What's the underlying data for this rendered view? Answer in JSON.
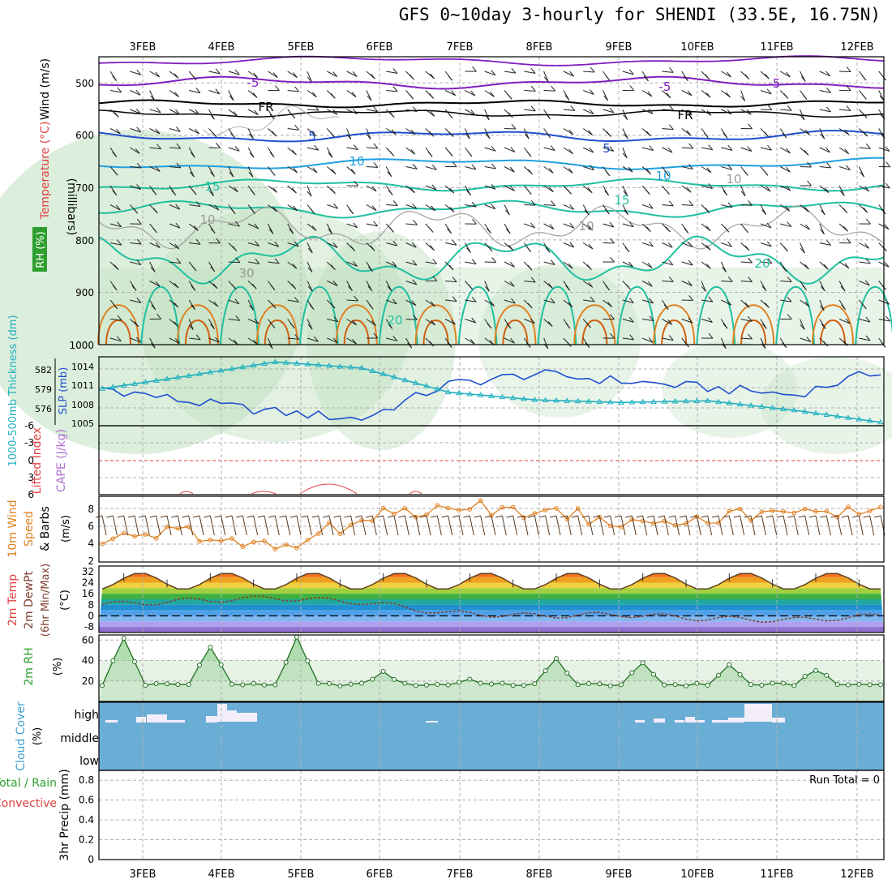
{
  "title": "GFS 0~10day 3-hourly for SHENDI (33.5E, 16.75N)",
  "dates": [
    "3FEB",
    "4FEB",
    "5FEB",
    "6FEB",
    "7FEB",
    "8FEB",
    "9FEB",
    "10FEB",
    "11FEB",
    "12FEB"
  ],
  "colors": {
    "frame": "#000000",
    "grid": "#b0b0b0",
    "purple": "#8020c0",
    "black_iso": "#000000",
    "blue_iso": "#2050d0",
    "lightblue_iso": "#20a0e0",
    "teal_iso": "#20c0a0",
    "cyan": "#20b0c0",
    "orange": "#e08020",
    "green": "#30a030",
    "red": "#e04040",
    "cloud": "#6aaed6",
    "rh_shade": "#bfe0bf"
  },
  "panels": {
    "upper": {
      "label_wind": "Wind (m/s)",
      "label_temp": "Temperature (°C)",
      "label_rh": "RH (%)",
      "label_pressure": "(millibars)",
      "ticks": [
        "500",
        "600",
        "700",
        "800",
        "900",
        "1000"
      ],
      "iso_labels": [
        "-5",
        "-5",
        "-5",
        "FR",
        "FR",
        "5",
        "5",
        "10",
        "10",
        "15",
        "15",
        "20",
        "20",
        "10",
        "10",
        "10",
        "30"
      ]
    },
    "slp": {
      "label_thk": "1000-500mb Thickness (dm)",
      "label_slp": "SLP (mb)",
      "ticks_left": [
        "582",
        "579",
        "576"
      ],
      "ticks_right": [
        "1014",
        "1011",
        "1008",
        "1005"
      ]
    },
    "cape": {
      "label_li": "Lifted Index",
      "label_cape": "CAPE (J/kg)",
      "ticks": [
        "-6",
        "-3",
        "0",
        "3",
        "6"
      ]
    },
    "wind10": {
      "label_a": "10m Wind",
      "label_b": "Speed",
      "label_c": "& Barbs",
      "label_unit": "(m/s)",
      "ticks": [
        "8",
        "6",
        "4",
        "2"
      ]
    },
    "temp2m": {
      "label_a": "2m Temp",
      "label_b": "2m DewPt",
      "label_c": "(6hr Min/Max)",
      "label_unit": "(°C)",
      "ticks": [
        "32",
        "24",
        "16",
        "8",
        "0",
        "-8"
      ]
    },
    "rh2m": {
      "label": "2m RH",
      "label_unit": "(%)",
      "ticks": [
        "60",
        "40",
        "20"
      ]
    },
    "cloud": {
      "label": "Cloud Cover",
      "label_unit": "(%)",
      "levels": [
        "high",
        "middle",
        "low"
      ]
    },
    "precip": {
      "label_a": "Total / Rain",
      "label_b": "Convective",
      "label_c": "3hr Precip (mm)",
      "ticks": [
        "0.8",
        "0.6",
        "0.4",
        "0.2",
        "0"
      ],
      "run_total": "Run Total = 0"
    }
  },
  "chart_data": [
    {
      "type": "line",
      "title": "1000-500mb Thickness / SLP",
      "x": [
        "3FEB",
        "4FEB",
        "5FEB",
        "6FEB",
        "7FEB",
        "8FEB",
        "9FEB",
        "10FEB",
        "11FEB",
        "12FEB"
      ],
      "series": [
        {
          "name": "SLP (mb)",
          "axis": "right",
          "values": [
            1010.5,
            1008.5,
            1007.0,
            1006.0,
            1011.0,
            1012.5,
            1011.5,
            1010.5,
            1009.5,
            1013.0
          ]
        },
        {
          "name": "1000-500mb Thickness (dm)",
          "axis": "left",
          "values": [
            579.3,
            580.8,
            582.4,
            581.7,
            578.9,
            578.0,
            577.7,
            577.9,
            576.8,
            575.4
          ]
        }
      ],
      "ylim_left": [
        575,
        583
      ],
      "ylim_right": [
        1005,
        1015
      ]
    },
    {
      "type": "line",
      "title": "10m Wind Speed",
      "x": [
        "3FEB",
        "4FEB",
        "5FEB",
        "6FEB",
        "7FEB",
        "8FEB",
        "9FEB",
        "10FEB",
        "11FEB",
        "12FEB"
      ],
      "series": [
        {
          "name": "Speed",
          "values": [
            4.5,
            5.0,
            3.5,
            6.5,
            8.0,
            7.5,
            6.5,
            6.8,
            7.0,
            8.0
          ]
        }
      ],
      "ylim": [
        2,
        9
      ]
    },
    {
      "type": "area",
      "title": "2m Temp / 2m DewPt",
      "x": [
        "3FEB",
        "4FEB",
        "5FEB",
        "6FEB",
        "7FEB",
        "8FEB",
        "9FEB",
        "10FEB",
        "11FEB",
        "12FEB"
      ],
      "series": [
        {
          "name": "2m Temp",
          "values": [
            22,
            26,
            28,
            27,
            26,
            27,
            27,
            28,
            28,
            23
          ]
        },
        {
          "name": "2m DewPt",
          "values": [
            8,
            11,
            13,
            10,
            2,
            0,
            1,
            -2,
            -3,
            0
          ]
        }
      ],
      "ylim": [
        -12,
        36
      ]
    },
    {
      "type": "area",
      "title": "2m RH",
      "x": [
        "3FEB",
        "4FEB",
        "5FEB",
        "6FEB",
        "7FEB",
        "8FEB",
        "9FEB",
        "10FEB",
        "11FEB",
        "12FEB"
      ],
      "series": [
        {
          "name": "2m RH",
          "values": [
            60,
            53,
            60,
            27,
            20,
            40,
            35,
            34,
            30,
            35
          ]
        }
      ],
      "ylim": [
        0,
        65
      ]
    },
    {
      "type": "bar",
      "title": "3hr Precip",
      "x": [
        "3FEB",
        "4FEB",
        "5FEB",
        "6FEB",
        "7FEB",
        "8FEB",
        "9FEB",
        "10FEB",
        "11FEB",
        "12FEB"
      ],
      "values": [
        0,
        0,
        0,
        0,
        0,
        0,
        0,
        0,
        0,
        0
      ],
      "ylim": [
        0,
        0.9
      ]
    }
  ]
}
